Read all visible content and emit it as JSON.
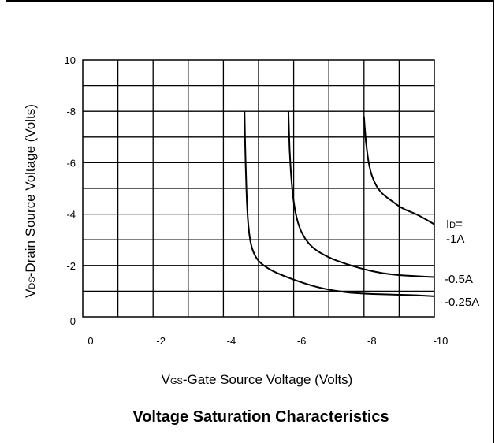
{
  "chart_data": {
    "type": "line",
    "title": "Voltage Saturation Characteristics",
    "xlabel": {
      "prefix": "V",
      "sub": "GS",
      "rest": "-Gate Source Voltage  (Volts)"
    },
    "ylabel": {
      "prefix": "V",
      "sub": "DS",
      "rest": "-Drain Source Voltage (Volts)"
    },
    "x_ticks": [
      "0",
      "-2",
      "-4",
      "-6",
      "-8",
      "-10"
    ],
    "y_ticks": [
      "0",
      "-2",
      "-4",
      "-6",
      "-8",
      "-10"
    ],
    "xlim": [
      0,
      -10
    ],
    "ylim": [
      0,
      -10
    ],
    "grid": true,
    "legend_title": {
      "prefix": "I",
      "sub": "D",
      "rest": "="
    },
    "series": [
      {
        "name": "-1A",
        "x": [
          -8.0,
          -8.05,
          -8.15,
          -8.3,
          -8.5,
          -8.8,
          -9.1,
          -9.5,
          -10.0
        ],
        "y": [
          -7.8,
          -6.8,
          -5.8,
          -5.2,
          -4.8,
          -4.5,
          -4.2,
          -4.0,
          -3.6
        ]
      },
      {
        "name": "-0.5A",
        "x": [
          -5.85,
          -5.88,
          -5.95,
          -6.05,
          -6.2,
          -6.5,
          -7.0,
          -7.5,
          -8.0,
          -8.5,
          -9.0,
          -9.5,
          -10.0
        ],
        "y": [
          -8.0,
          -6.5,
          -5.0,
          -4.0,
          -3.3,
          -2.7,
          -2.3,
          -2.05,
          -1.85,
          -1.7,
          -1.62,
          -1.58,
          -1.55
        ]
      },
      {
        "name": "-0.25A",
        "x": [
          -4.6,
          -4.63,
          -4.68,
          -4.75,
          -4.85,
          -5.0,
          -5.3,
          -5.7,
          -6.2,
          -6.8,
          -7.5,
          -8.0,
          -8.5,
          -9.0,
          -9.5,
          -10.0
        ],
        "y": [
          -8.0,
          -6.0,
          -4.0,
          -3.0,
          -2.5,
          -2.15,
          -1.85,
          -1.6,
          -1.35,
          -1.1,
          -0.95,
          -0.9,
          -0.88,
          -0.86,
          -0.84,
          -0.8
        ]
      }
    ]
  }
}
